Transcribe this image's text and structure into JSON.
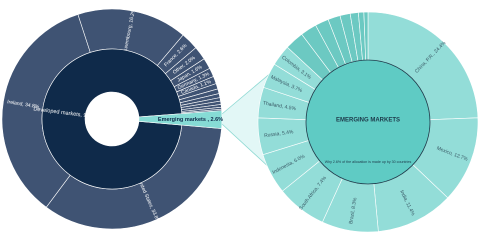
{
  "chart_data": [
    {
      "type": "sunburst",
      "inner": {
        "labels": [
          "Developed markets, 97%",
          "Emerging markets , 2.6%"
        ],
        "values": [
          97.4,
          2.6
        ],
        "colors": [
          "#0f2a4a",
          "#86dbd5"
        ]
      },
      "outer": {
        "labels": [
          "United States, 33.8%",
          "Ireland, 34.8%",
          "Luxembourg, 16.2%",
          "France, 2.6%",
          "Other, 2.0%",
          "Japan, 1.6%",
          "Germany, 1.3%",
          "Canada, 1.1%",
          null,
          null,
          null,
          null,
          null,
          null,
          null,
          null
        ],
        "values": [
          33.8,
          34.8,
          16.2,
          2.6,
          2.0,
          1.6,
          1.3,
          1.1,
          0.8,
          0.7,
          0.6,
          0.5,
          0.5,
          0.4,
          0.3,
          0.2
        ],
        "color": "#3f5373"
      }
    },
    {
      "type": "sunburst",
      "center_label": "EMERGING MARKETS",
      "note": "Why 2.6% of the allocation is made up by 30 countries",
      "center_color": "#5fcbc4",
      "outer": {
        "labels": [
          "China, P.R., 24.4%",
          "Mexico, 12.7%",
          "India, 11.4%",
          "Brazil, 8.3%",
          "South Africa, 7.4%",
          "Indonesia, 6.0%",
          "Russia, 5.4%",
          "Thailand, 4.5%",
          "Malaysia, 3.7%",
          "Colombia, 3.1%",
          null,
          null,
          null,
          null,
          null,
          null,
          null,
          null
        ],
        "values": [
          24.4,
          12.7,
          11.4,
          8.3,
          7.4,
          6.0,
          5.4,
          4.5,
          3.7,
          3.1,
          2.8,
          2.4,
          2.0,
          1.8,
          1.5,
          1.2,
          0.8,
          0.6
        ],
        "color": "#93ddd8"
      }
    }
  ]
}
